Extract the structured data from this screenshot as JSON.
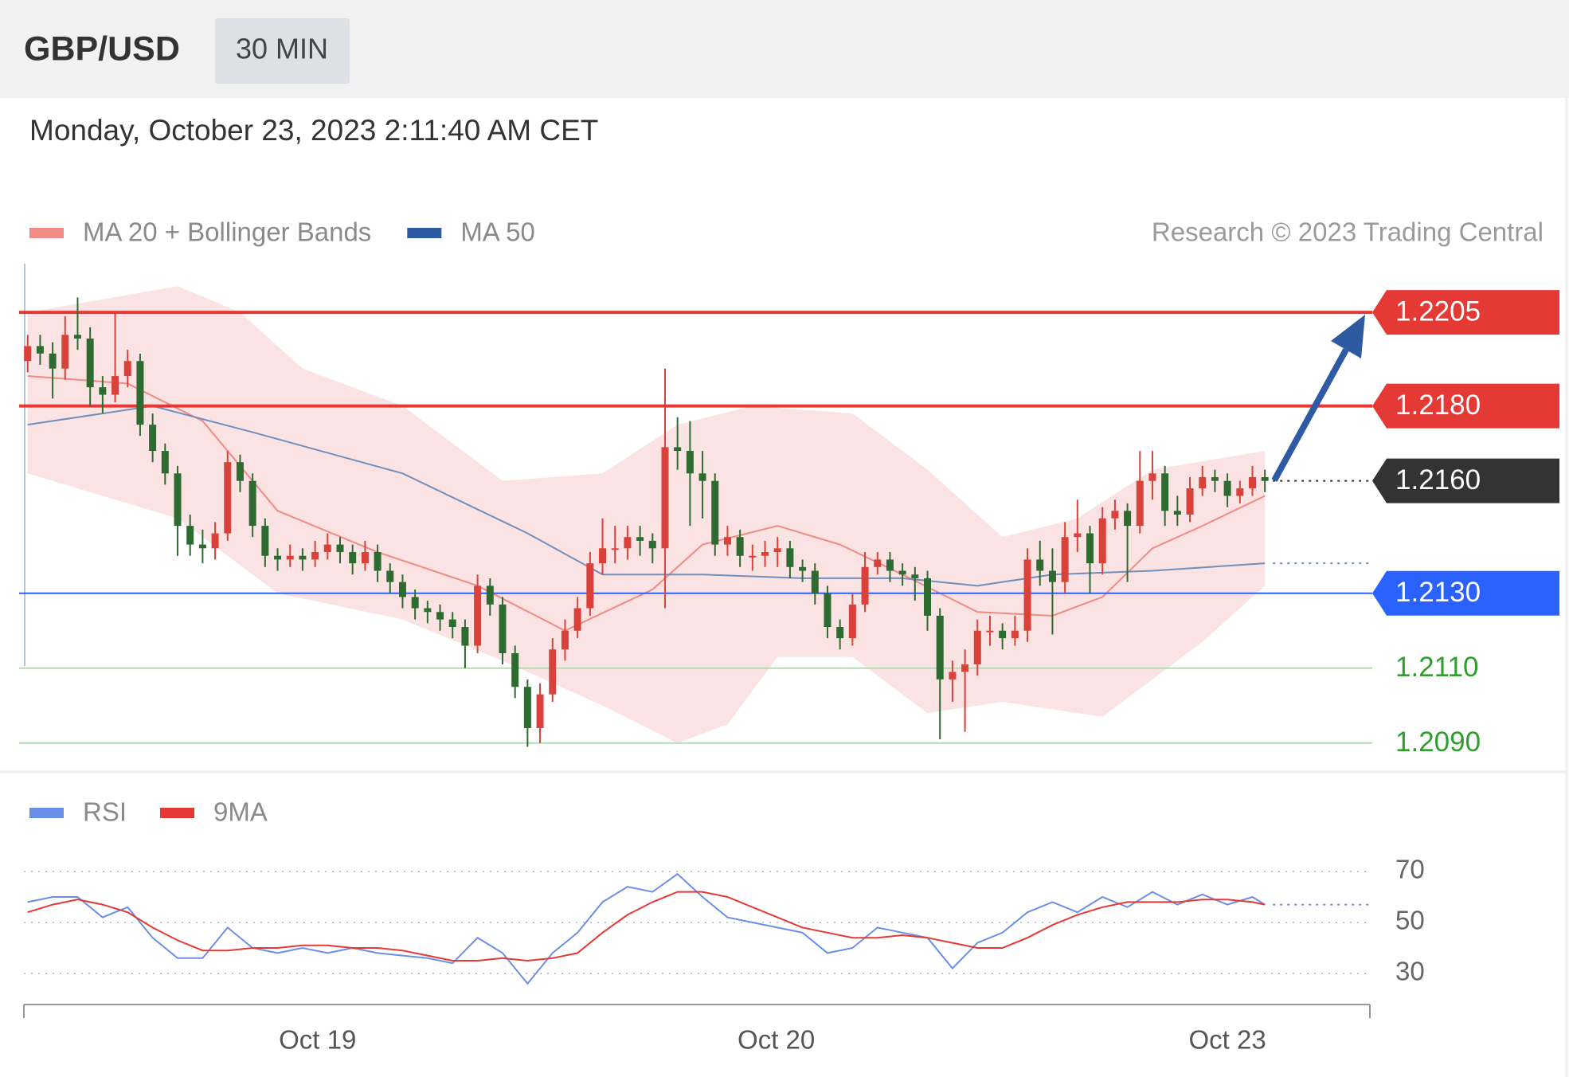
{
  "header": {
    "symbol": "GBP/USD",
    "interval": "30 MIN",
    "timestamp": "Monday, October 23, 2023 2:11:40 AM CET"
  },
  "chart_data": [
    {
      "type": "candlestick",
      "source": "Research © 2023 Trading Central",
      "up_color": "#d9423a",
      "down_color": "#2e6b30",
      "xlim": [
        -0.3,
        107.4
      ],
      "ylim": [
        1.2084,
        1.2218
      ],
      "ohlc": [
        [
          1.2192,
          1.2199,
          1.2189,
          1.2196
        ],
        [
          1.2196,
          1.2199,
          1.2191,
          1.2194
        ],
        [
          1.2194,
          1.2197,
          1.2182,
          1.219
        ],
        [
          1.219,
          1.2204,
          1.2187,
          1.2199
        ],
        [
          1.2199,
          1.2209,
          1.2195,
          1.2198
        ],
        [
          1.2198,
          1.2201,
          1.218,
          1.2185
        ],
        [
          1.2185,
          1.2188,
          1.2178,
          1.2183
        ],
        [
          1.2183,
          1.2205,
          1.2181,
          1.2188
        ],
        [
          1.2188,
          1.2195,
          1.2185,
          1.2192
        ],
        [
          1.2192,
          1.2194,
          1.2172,
          1.2175
        ],
        [
          1.2175,
          1.2178,
          1.2165,
          1.2168
        ],
        [
          1.2168,
          1.217,
          1.2159,
          1.2162
        ],
        [
          1.2162,
          1.2164,
          1.214,
          1.2148
        ],
        [
          1.2148,
          1.2151,
          1.214,
          1.2143
        ],
        [
          1.2143,
          1.2147,
          1.2138,
          1.2142
        ],
        [
          1.2142,
          1.2149,
          1.2139,
          1.2146
        ],
        [
          1.2146,
          1.2168,
          1.2144,
          1.2165
        ],
        [
          1.2165,
          1.2167,
          1.2157,
          1.216
        ],
        [
          1.216,
          1.2162,
          1.2145,
          1.2148
        ],
        [
          1.2148,
          1.215,
          1.2137,
          1.214
        ],
        [
          1.214,
          1.2142,
          1.2136,
          1.2139
        ],
        [
          1.2139,
          1.2143,
          1.2137,
          1.214
        ],
        [
          1.214,
          1.2142,
          1.2136,
          1.2139
        ],
        [
          1.2139,
          1.2144,
          1.2137,
          1.2141
        ],
        [
          1.2141,
          1.2146,
          1.2139,
          1.2143
        ],
        [
          1.2143,
          1.2145,
          1.2138,
          1.2141
        ],
        [
          1.2141,
          1.2143,
          1.2135,
          1.2138
        ],
        [
          1.2138,
          1.2144,
          1.2136,
          1.2141
        ],
        [
          1.2141,
          1.2143,
          1.2133,
          1.2136
        ],
        [
          1.2136,
          1.2138,
          1.213,
          1.2133
        ],
        [
          1.2133,
          1.2135,
          1.2126,
          1.2129
        ],
        [
          1.2129,
          1.2131,
          1.2123,
          1.2126
        ],
        [
          1.2126,
          1.2128,
          1.2122,
          1.2125
        ],
        [
          1.2125,
          1.2127,
          1.212,
          1.2123
        ],
        [
          1.2123,
          1.2125,
          1.2118,
          1.2121
        ],
        [
          1.2121,
          1.2123,
          1.211,
          1.2116
        ],
        [
          1.2116,
          1.2135,
          1.2114,
          1.2132
        ],
        [
          1.2132,
          1.2134,
          1.2124,
          1.2127
        ],
        [
          1.2127,
          1.2129,
          1.2111,
          1.2114
        ],
        [
          1.2114,
          1.2116,
          1.2102,
          1.2105
        ],
        [
          1.2105,
          1.2107,
          1.2089,
          1.2094
        ],
        [
          1.2094,
          1.2106,
          1.209,
          1.2103
        ],
        [
          1.2103,
          1.2118,
          1.2101,
          1.2115
        ],
        [
          1.2115,
          1.2123,
          1.2112,
          1.212
        ],
        [
          1.212,
          1.2129,
          1.2118,
          1.2126
        ],
        [
          1.2126,
          1.2141,
          1.2124,
          1.2138
        ],
        [
          1.2138,
          1.215,
          1.2135,
          1.2142
        ],
        [
          1.2142,
          1.2148,
          1.2138,
          1.2142
        ],
        [
          1.2142,
          1.2148,
          1.2139,
          1.2145
        ],
        [
          1.2145,
          1.2148,
          1.214,
          1.2144
        ],
        [
          1.2144,
          1.2146,
          1.2138,
          1.2142
        ],
        [
          1.2142,
          1.219,
          1.2126,
          1.2169
        ],
        [
          1.2169,
          1.2177,
          1.2163,
          1.2168
        ],
        [
          1.2168,
          1.2176,
          1.2148,
          1.2162
        ],
        [
          1.2162,
          1.2168,
          1.215,
          1.216
        ],
        [
          1.216,
          1.2162,
          1.214,
          1.2143
        ],
        [
          1.2143,
          1.2148,
          1.214,
          1.2145
        ],
        [
          1.2145,
          1.2147,
          1.2137,
          1.214
        ],
        [
          1.214,
          1.2143,
          1.2136,
          1.214
        ],
        [
          1.214,
          1.2144,
          1.2137,
          1.2141
        ],
        [
          1.2141,
          1.2145,
          1.2137,
          1.2142
        ],
        [
          1.2142,
          1.2144,
          1.2134,
          1.2137
        ],
        [
          1.2137,
          1.2139,
          1.2133,
          1.2136
        ],
        [
          1.2136,
          1.2138,
          1.2127,
          1.213
        ],
        [
          1.213,
          1.2132,
          1.2118,
          1.2121
        ],
        [
          1.2121,
          1.2123,
          1.2115,
          1.2118
        ],
        [
          1.2118,
          1.213,
          1.2116,
          1.2127
        ],
        [
          1.2127,
          1.2141,
          1.2125,
          1.2137
        ],
        [
          1.2137,
          1.2141,
          1.2135,
          1.2139
        ],
        [
          1.2139,
          1.2141,
          1.2133,
          1.2136
        ],
        [
          1.2136,
          1.2138,
          1.2132,
          1.2135
        ],
        [
          1.2135,
          1.2137,
          1.2128,
          1.2134
        ],
        [
          1.2134,
          1.2136,
          1.212,
          1.2124
        ],
        [
          1.2124,
          1.2126,
          1.2091,
          1.2107
        ],
        [
          1.2107,
          1.2112,
          1.2101,
          1.2109
        ],
        [
          1.2109,
          1.2115,
          1.2093,
          1.2111
        ],
        [
          1.2111,
          1.2123,
          1.2108,
          1.212
        ],
        [
          1.212,
          1.2124,
          1.2116,
          1.212
        ],
        [
          1.212,
          1.2122,
          1.2115,
          1.2118
        ],
        [
          1.2118,
          1.2124,
          1.2116,
          1.212
        ],
        [
          1.212,
          1.2142,
          1.2117,
          1.2139
        ],
        [
          1.2139,
          1.2144,
          1.2132,
          1.2136
        ],
        [
          1.2136,
          1.2142,
          1.2119,
          1.2133
        ],
        [
          1.2133,
          1.2149,
          1.213,
          1.2145
        ],
        [
          1.2145,
          1.2155,
          1.2141,
          1.2146
        ],
        [
          1.2146,
          1.2148,
          1.213,
          1.2138
        ],
        [
          1.2138,
          1.2153,
          1.2135,
          1.215
        ],
        [
          1.215,
          1.2155,
          1.2147,
          1.2152
        ],
        [
          1.2152,
          1.2154,
          1.2133,
          1.2148
        ],
        [
          1.2148,
          1.2168,
          1.2146,
          1.216
        ],
        [
          1.216,
          1.2168,
          1.2155,
          1.2162
        ],
        [
          1.2162,
          1.2164,
          1.2148,
          1.2152
        ],
        [
          1.2152,
          1.2156,
          1.2148,
          1.2151
        ],
        [
          1.2151,
          1.2161,
          1.2149,
          1.2158
        ],
        [
          1.2158,
          1.2164,
          1.2156,
          1.2161
        ],
        [
          1.2161,
          1.2163,
          1.2157,
          1.216
        ],
        [
          1.216,
          1.2162,
          1.2153,
          1.2156
        ],
        [
          1.2156,
          1.216,
          1.2154,
          1.2158
        ],
        [
          1.2158,
          1.2164,
          1.2156,
          1.2161
        ],
        [
          1.2161,
          1.2163,
          1.2157,
          1.216
        ]
      ],
      "series": [
        {
          "name": "MA 20 + Bollinger Bands",
          "color": "#f08a84",
          "band_color": "#fbe3e3",
          "x": [
            0,
            8,
            14,
            20,
            28,
            36,
            43,
            50,
            54,
            60,
            65,
            70,
            76,
            82,
            86,
            90,
            94,
            99
          ],
          "values": [
            1.2188,
            1.2186,
            1.2176,
            1.2152,
            1.2141,
            1.2132,
            1.212,
            1.2131,
            1.2143,
            1.2148,
            1.2143,
            1.2135,
            1.2125,
            1.2124,
            1.2129,
            1.2142,
            1.2148,
            1.2156
          ],
          "band_upper": {
            "x": [
              0,
              12,
              17,
              22,
              30,
              38,
              46,
              52,
              58,
              66,
              72,
              78,
              84,
              90,
              99
            ],
            "values": [
              1.2205,
              1.2212,
              1.2205,
              1.219,
              1.218,
              1.216,
              1.2162,
              1.2175,
              1.218,
              1.2178,
              1.2163,
              1.2145,
              1.215,
              1.2163,
              1.2168
            ]
          },
          "band_lower": {
            "x": [
              0,
              12,
              20,
              30,
              38,
              46,
              52,
              56,
              60,
              66,
              72,
              78,
              86,
              94,
              99
            ],
            "values": [
              1.2162,
              1.215,
              1.213,
              1.2123,
              1.2112,
              1.21,
              1.209,
              1.2095,
              1.2113,
              1.2113,
              1.2098,
              1.2101,
              1.2097,
              1.2117,
              1.2132
            ]
          }
        },
        {
          "name": "MA 50",
          "color": "#2d5aa0",
          "line_color": "#6f8fbf",
          "x": [
            0,
            10,
            18,
            30,
            40,
            46,
            54,
            62,
            70,
            76,
            82,
            90,
            99
          ],
          "values": [
            1.2175,
            1.218,
            1.2173,
            1.2162,
            1.2146,
            1.2135,
            1.2135,
            1.2134,
            1.2134,
            1.2132,
            1.2135,
            1.2136,
            1.2138
          ]
        }
      ],
      "levels": [
        {
          "value": 1.2205,
          "label": "1.2205",
          "color": "#e53935",
          "line": "solid",
          "box": true
        },
        {
          "value": 1.218,
          "label": "1.2180",
          "color": "#e53935",
          "line": "solid",
          "box": true
        },
        {
          "value": 1.216,
          "label": "1.2160",
          "color": "#333333",
          "line": "dotted",
          "box": true
        },
        {
          "value": 1.213,
          "label": "1.2130",
          "color": "#2962ff",
          "line": "solid",
          "box": true
        },
        {
          "value": 1.211,
          "label": "1.2110",
          "color": "#2e9e2e",
          "line_color": "#b5dcb5",
          "line": "solid",
          "box": false
        },
        {
          "value": 1.209,
          "label": "1.2090",
          "color": "#2e9e2e",
          "line_color": "#b5dcb5",
          "line": "solid",
          "box": false
        }
      ]
    },
    {
      "type": "line",
      "xlim": [
        -0.3,
        107.4
      ],
      "ylim": [
        20,
        80
      ],
      "yticks": [
        30,
        50,
        70
      ],
      "grid": true,
      "xticks": [
        {
          "value": 23.2,
          "label": "Oct 19"
        },
        {
          "value": 59.9,
          "label": "Oct 20"
        },
        {
          "value": 96,
          "label": "Oct 23"
        }
      ],
      "x": [
        0,
        2,
        4,
        6,
        8,
        10,
        12,
        14,
        16,
        18,
        20,
        22,
        24,
        26,
        28,
        30,
        32,
        34,
        36,
        38,
        40,
        42,
        44,
        46,
        48,
        50,
        52,
        54,
        56,
        58,
        60,
        62,
        64,
        66,
        68,
        70,
        72,
        74,
        76,
        78,
        80,
        82,
        84,
        86,
        88,
        90,
        92,
        94,
        96,
        98,
        99
      ],
      "series": [
        {
          "name": "RSI",
          "color": "#6a8fe8",
          "values": [
            58,
            60,
            60,
            52,
            56,
            44,
            36,
            36,
            48,
            40,
            38,
            40,
            38,
            40,
            38,
            37,
            36,
            34,
            44,
            38,
            26,
            38,
            46,
            58,
            64,
            62,
            69,
            60,
            52,
            50,
            48,
            46,
            38,
            40,
            48,
            46,
            44,
            32,
            42,
            46,
            54,
            58,
            54,
            60,
            56,
            62,
            57,
            61,
            57,
            60,
            57
          ]
        },
        {
          "name": "9MA",
          "color": "#e53935",
          "values": [
            54,
            57,
            59,
            57,
            54,
            48,
            43,
            39,
            39,
            40,
            40,
            41,
            41,
            40,
            40,
            39,
            37,
            35,
            35,
            36,
            35,
            36,
            38,
            46,
            53,
            58,
            62,
            62,
            60,
            56,
            52,
            48,
            46,
            44,
            44,
            45,
            44,
            42,
            40,
            40,
            44,
            49,
            53,
            56,
            58,
            58,
            58,
            59,
            59,
            58,
            57
          ]
        }
      ]
    }
  ]
}
